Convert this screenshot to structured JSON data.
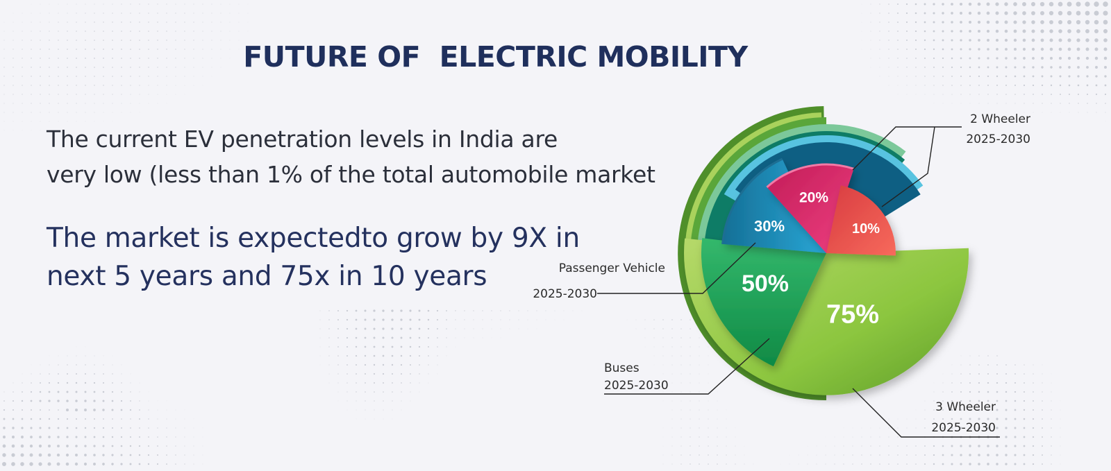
{
  "title": "FUTURE OF  ELECTRIC MOBILITY",
  "paragraphs": {
    "p1": [
      "The current EV penetration levels in India are",
      "very low (less than 1% of the total automobile market"
    ],
    "p2": [
      "The market is expectedto grow by 9X in",
      "next 5 years and 75x in 10 years"
    ]
  },
  "colors": {
    "title": "#1f2f5c",
    "three_wheeler": "#8cc63f",
    "buses": "#1aa65a",
    "passenger_vehicle": "#1b8fbf",
    "two_wheeler": "#e0266a",
    "ten_percent": "#ee4f52"
  },
  "chart_data": {
    "type": "pie",
    "slices": [
      {
        "label": "3 Wheeler",
        "period": "2025-2030",
        "value": 75,
        "value_label": "75%"
      },
      {
        "label": "Buses",
        "period": "2025-2030",
        "value": 50,
        "value_label": "50%"
      },
      {
        "label": "Passenger Vehicle",
        "period": "2025-2030",
        "value": 30,
        "value_label": "30%"
      },
      {
        "label": "",
        "period": "",
        "value": 20,
        "value_label": "20%"
      },
      {
        "label": "2 Wheeler",
        "period": "2025-2030",
        "value": 10,
        "value_label": "10%"
      }
    ]
  }
}
